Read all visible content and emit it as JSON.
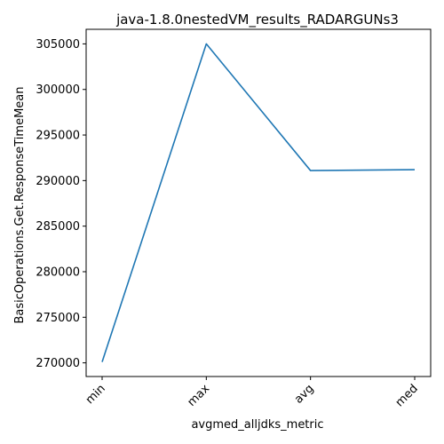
{
  "chart_data": {
    "type": "line",
    "title": "java-1.8.0nestedVM_results_RADARGUNs3",
    "xlabel": "avgmed_alljdks_metric",
    "ylabel": "BasicOperations.Get.ResponseTimeMean",
    "categories": [
      "min",
      "max",
      "avg",
      "med"
    ],
    "series": [
      {
        "values": [
          270100,
          305000,
          291100,
          291200
        ]
      }
    ],
    "ylim": [
      268500,
      306600
    ],
    "yticks": [
      270000,
      275000,
      280000,
      285000,
      290000,
      295000,
      300000,
      305000
    ],
    "grid": false,
    "line_color": "#1f77b4"
  }
}
